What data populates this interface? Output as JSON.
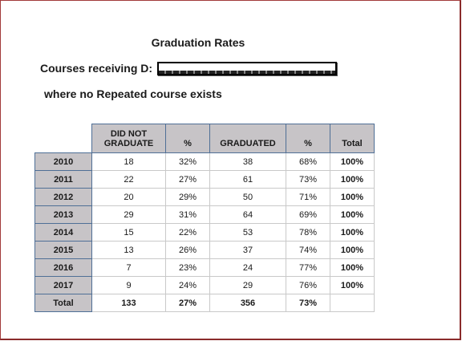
{
  "report": {
    "title": "Graduation Rates",
    "courses_label": "Courses receiving D:",
    "condition": "where no Repeated course exists"
  },
  "table": {
    "headers": {
      "not_graduate": "DID NOT GRADUATE",
      "pct1": "%",
      "graduated": "GRADUATED",
      "pct2": "%",
      "total": "Total"
    },
    "rows": [
      {
        "year": "2010",
        "not_graduate": "18",
        "pct_not": "32%",
        "graduated": "38",
        "pct_grad": "68%",
        "total": "100%"
      },
      {
        "year": "2011",
        "not_graduate": "22",
        "pct_not": "27%",
        "graduated": "61",
        "pct_grad": "73%",
        "total": "100%"
      },
      {
        "year": "2012",
        "not_graduate": "20",
        "pct_not": "29%",
        "graduated": "50",
        "pct_grad": "71%",
        "total": "100%"
      },
      {
        "year": "2013",
        "not_graduate": "29",
        "pct_not": "31%",
        "graduated": "64",
        "pct_grad": "69%",
        "total": "100%"
      },
      {
        "year": "2014",
        "not_graduate": "15",
        "pct_not": "22%",
        "graduated": "53",
        "pct_grad": "78%",
        "total": "100%"
      },
      {
        "year": "2015",
        "not_graduate": "13",
        "pct_not": "26%",
        "graduated": "37",
        "pct_grad": "74%",
        "total": "100%"
      },
      {
        "year": "2016",
        "not_graduate": "7",
        "pct_not": "23%",
        "graduated": "24",
        "pct_grad": "77%",
        "total": "100%"
      },
      {
        "year": "2017",
        "not_graduate": "9",
        "pct_not": "24%",
        "graduated": "29",
        "pct_grad": "76%",
        "total": "100%"
      }
    ],
    "totals": {
      "label": "Total",
      "not_graduate": "133",
      "pct_not": "27%",
      "graduated": "356",
      "pct_grad": "73%",
      "total": ""
    }
  }
}
